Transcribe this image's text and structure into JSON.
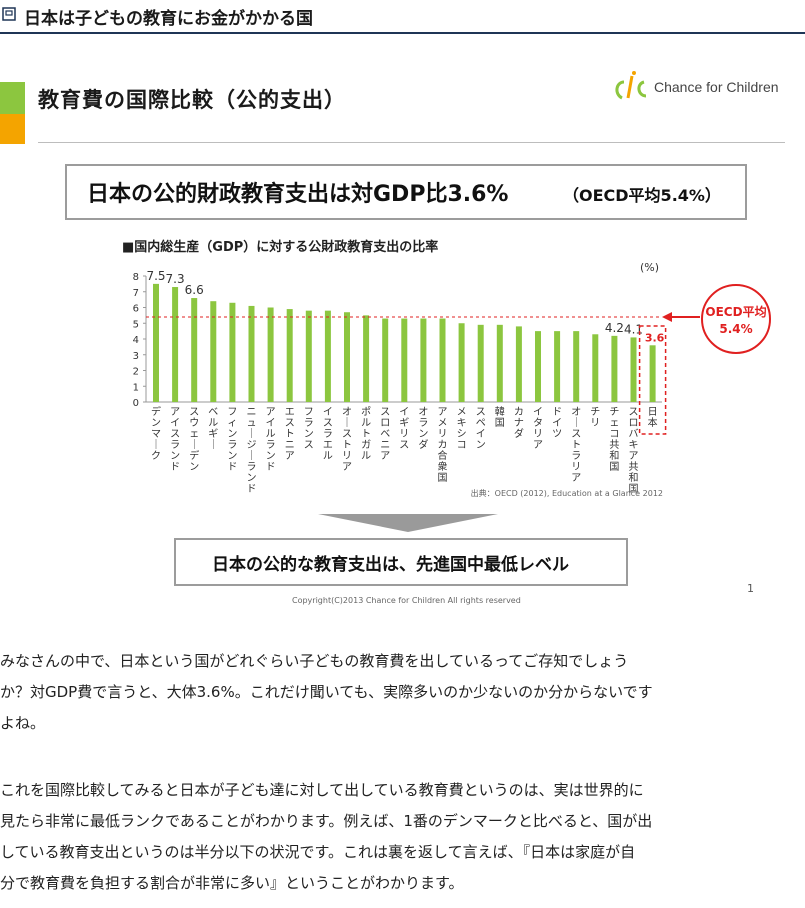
{
  "header": {
    "title": "日本は子どもの教育にお金がかかる国"
  },
  "slide": {
    "title": "教育費の国際比較（公的支出）",
    "logo_text": "Chance for Children",
    "headline": "日本の公的財政教育支出は対GDP比3.6%",
    "headline_sub": "（OECD平均5.4%）",
    "conclusion": "日本の公的な教育支出は、先進国中最低レベル",
    "copyright": "Copyright(C)2013 Chance for Children All rights reserved",
    "page_number": "1",
    "colors": {
      "bar": "#8cc63f",
      "accent_red": "#e02020",
      "orange": "#f4a400",
      "rule": "#1f3556"
    }
  },
  "chart_data": {
    "type": "bar",
    "title": "■国内総生産（GDP）に対する公財政教育支出の比率",
    "unit_label": "(%)",
    "ylim": [
      0,
      8
    ],
    "yticks": [
      "0",
      "1",
      "2",
      "3",
      "4",
      "5",
      "6",
      "7",
      "8"
    ],
    "categories": [
      "デンマーク",
      "アイスランド",
      "スウェーデン",
      "ベルギー",
      "フィンランド",
      "ニュージーランド",
      "アイルランド",
      "エストニア",
      "フランス",
      "イスラエル",
      "オーストリア",
      "ポルトガル",
      "スロベニア",
      "イギリス",
      "オランダ",
      "アメリカ合衆国",
      "メキシコ",
      "スペイン",
      "韓国",
      "カナダ",
      "イタリア",
      "ドイツ",
      "オーストラリア",
      "チリ",
      "チェコ共和国",
      "スロバキア共和国",
      "日本"
    ],
    "values": [
      7.5,
      7.3,
      6.6,
      6.4,
      6.3,
      6.1,
      6.0,
      5.9,
      5.8,
      5.8,
      5.7,
      5.5,
      5.3,
      5.3,
      5.3,
      5.3,
      5.0,
      4.9,
      4.9,
      4.8,
      4.5,
      4.5,
      4.5,
      4.3,
      4.2,
      4.1,
      3.6
    ],
    "data_labels": [
      {
        "index": 0,
        "text": "7.5"
      },
      {
        "index": 1,
        "text": "7.3"
      },
      {
        "index": 2,
        "text": "6.6"
      },
      {
        "index": 24,
        "text": "4.2"
      },
      {
        "index": 25,
        "text": "4.1"
      },
      {
        "index": 26,
        "text": "3.6"
      }
    ],
    "reference_line": {
      "value": 5.4,
      "label": "OECD平均",
      "label_value": "5.4%"
    },
    "highlight_index": 26,
    "source": "出典：OECD (2012), Education at a Glance 2012",
    "grid": false,
    "legend": "top-left"
  },
  "article": {
    "paragraphs": [
      [
        "みなさんの中で、日本という国がどれぐらい子どもの教育費を出しているってご存知でしょう",
        "か？対GDP費で言うと、大体3.6%。これだけ聞いても、実際多いのか少ないのか分からないです",
        "よね。"
      ],
      [
        "これを国際比較してみると日本が子ども達に対して出している教育費というのは、実は世界的に",
        "見たら非常に最低ランクであることがわかります。例えば、1番のデンマークと比べると、国が出",
        "している教育支出というのは半分以下の状況です。これは裏を返して言えば、『日本は家庭が自",
        "分で教育費を負担する割合が非常に多い』ということがわかります。"
      ]
    ]
  }
}
